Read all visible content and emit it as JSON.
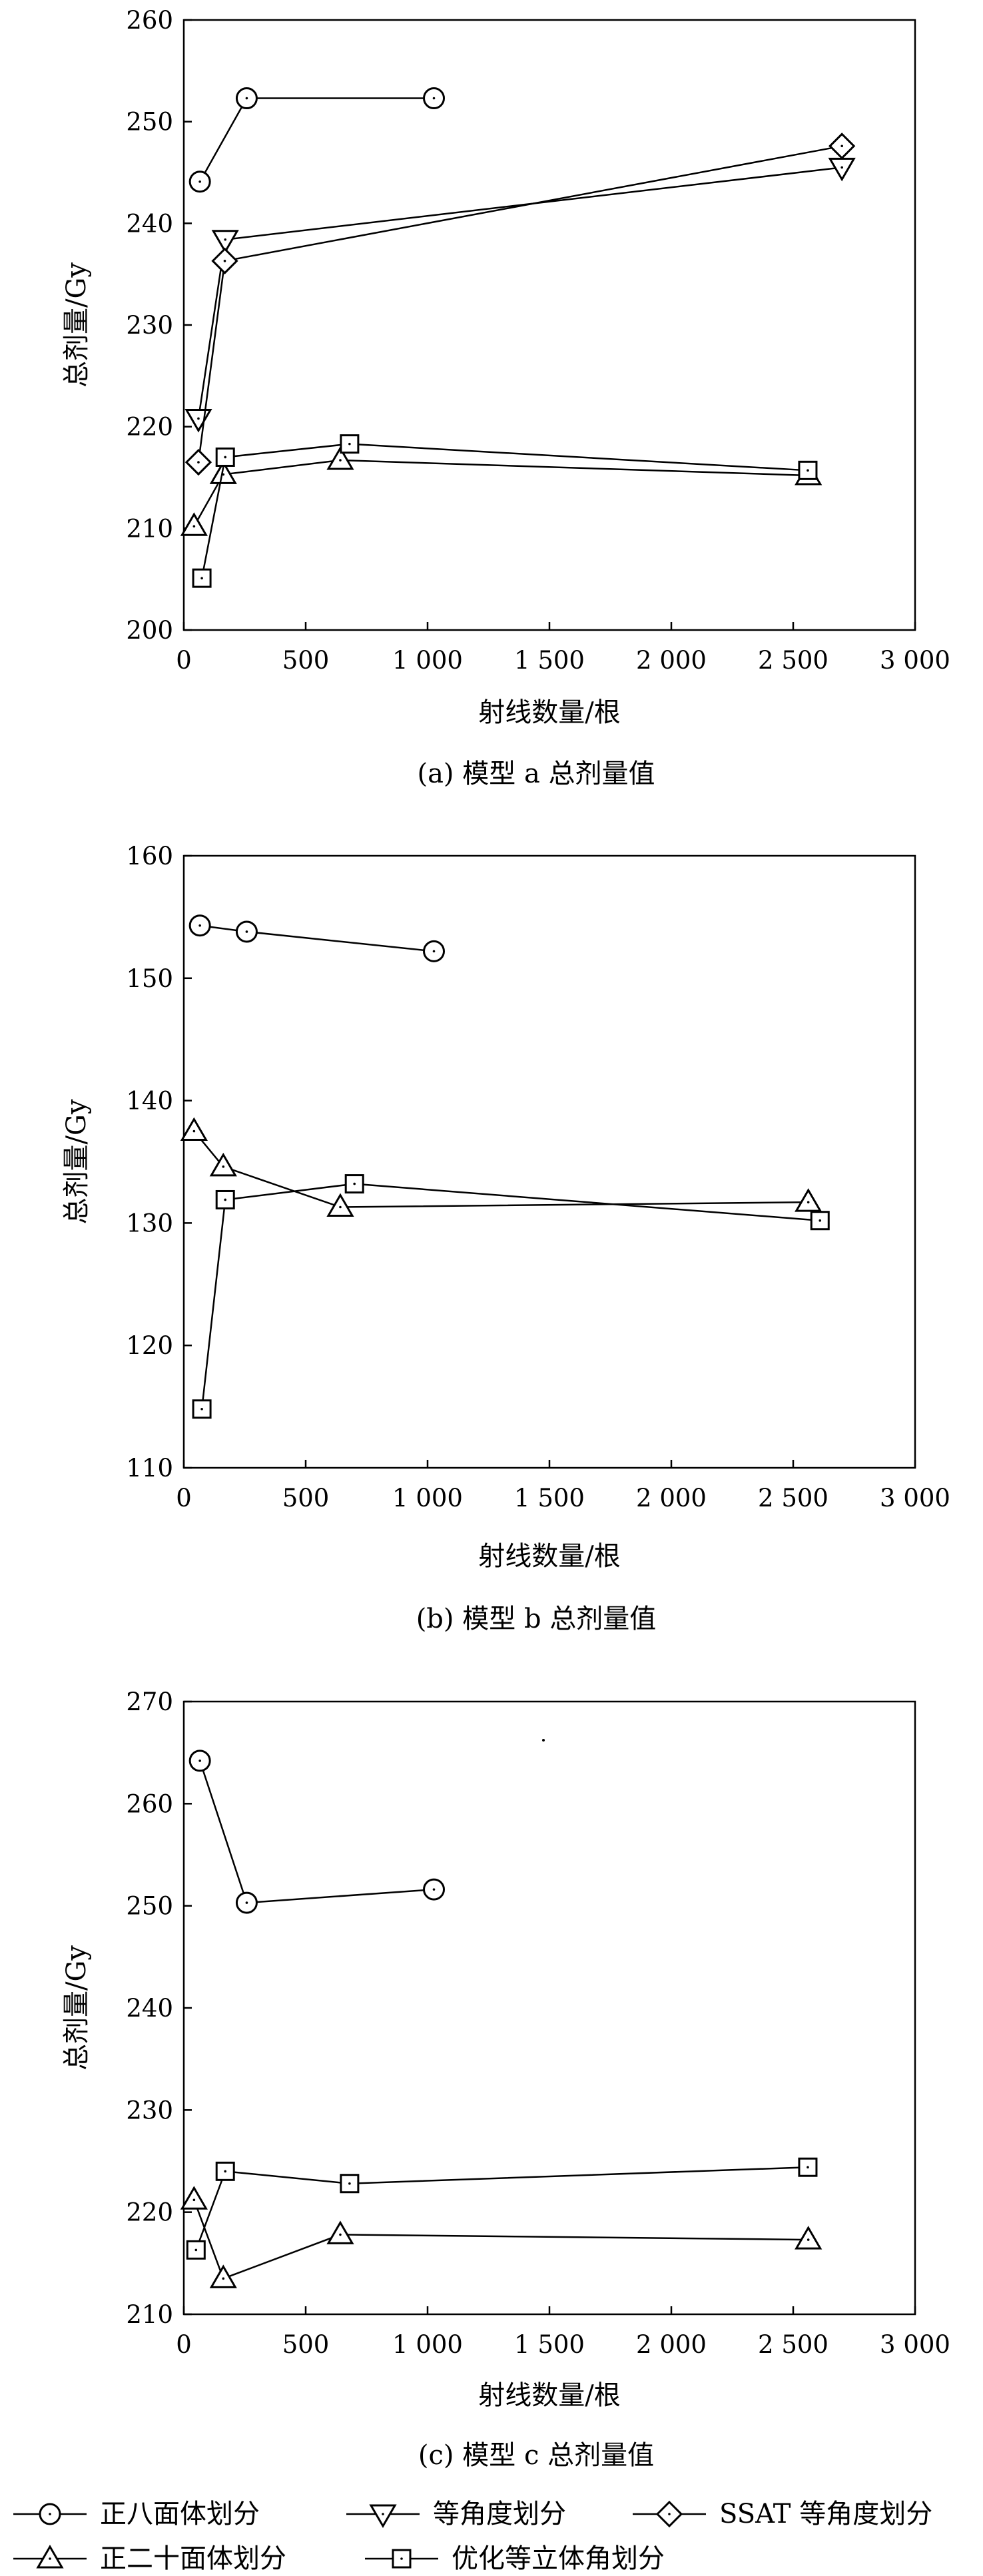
{
  "chart_data": [
    {
      "id": "a",
      "type": "line",
      "caption": "(a) 模型 a 总剂量值",
      "xlabel": "射线数量/根",
      "ylabel": "总剂量/Gy",
      "xlim": [
        0,
        3000
      ],
      "ylim": [
        200,
        260
      ],
      "xticks": [
        0,
        500,
        1000,
        1500,
        2000,
        2500,
        3000
      ],
      "xtick_labels": [
        "0",
        "500",
        "1 000",
        "1 500",
        "2 000",
        "2 500",
        "3 000"
      ],
      "yticks": [
        200,
        210,
        220,
        230,
        240,
        250,
        260
      ],
      "ytick_labels": [
        "200",
        "210",
        "220",
        "230",
        "240",
        "250",
        "260"
      ],
      "grid": false,
      "series": [
        {
          "name": "正八面体划分",
          "marker": "circle",
          "x": [
            66,
            258,
            1026
          ],
          "y": [
            244.1,
            252.3,
            252.3
          ]
        },
        {
          "name": "等角度划分",
          "marker": "triangle-down",
          "x": [
            60,
            170,
            2700
          ],
          "y": [
            220.8,
            238.4,
            245.5
          ]
        },
        {
          "name": "SSAT 等角度划分",
          "marker": "diamond",
          "x": [
            60,
            168,
            2700
          ],
          "y": [
            216.5,
            236.3,
            247.6
          ]
        },
        {
          "name": "正二十面体划分",
          "marker": "triangle-up",
          "x": [
            42,
            162,
            642,
            2562
          ],
          "y": [
            210.2,
            215.3,
            216.7,
            215.2
          ]
        },
        {
          "name": "优化等立体角划分",
          "marker": "square",
          "x": [
            74,
            170,
            680,
            2560
          ],
          "y": [
            205.1,
            217.0,
            218.3,
            215.7
          ]
        }
      ]
    },
    {
      "id": "b",
      "type": "line",
      "caption": "(b) 模型 b 总剂量值",
      "xlabel": "射线数量/根",
      "ylabel": "总剂量/Gy",
      "xlim": [
        0,
        3000
      ],
      "ylim": [
        110,
        160
      ],
      "xticks": [
        0,
        500,
        1000,
        1500,
        2000,
        2500,
        3000
      ],
      "xtick_labels": [
        "0",
        "500",
        "1 000",
        "1 500",
        "2 000",
        "2 500",
        "3 000"
      ],
      "yticks": [
        110,
        120,
        130,
        140,
        150,
        160
      ],
      "ytick_labels": [
        "110",
        "120",
        "130",
        "140",
        "150",
        "160"
      ],
      "grid": false,
      "series": [
        {
          "name": "正八面体划分",
          "marker": "circle",
          "x": [
            66,
            258,
            1026
          ],
          "y": [
            154.3,
            153.8,
            152.2
          ]
        },
        {
          "name": "正二十面体划分",
          "marker": "triangle-up",
          "x": [
            42,
            162,
            642,
            2562
          ],
          "y": [
            137.5,
            134.6,
            131.3,
            131.7
          ]
        },
        {
          "name": "优化等立体角划分",
          "marker": "square",
          "x": [
            74,
            170,
            700,
            2610
          ],
          "y": [
            114.8,
            131.9,
            133.2,
            130.2
          ]
        }
      ]
    },
    {
      "id": "c",
      "type": "line",
      "caption": "(c) 模型 c 总剂量值",
      "xlabel": "射线数量/根",
      "ylabel": "总剂量/Gy",
      "xlim": [
        0,
        3000
      ],
      "ylim": [
        210,
        270
      ],
      "xticks": [
        0,
        500,
        1000,
        1500,
        2000,
        2500,
        3000
      ],
      "xtick_labels": [
        "0",
        "500",
        "1 000",
        "1 500",
        "2 000",
        "2 500",
        "3 000"
      ],
      "yticks": [
        210,
        220,
        230,
        240,
        250,
        260,
        270
      ],
      "ytick_labels": [
        "210",
        "220",
        "230",
        "240",
        "250",
        "260",
        "270"
      ],
      "grid": false,
      "series": [
        {
          "name": "正八面体划分",
          "marker": "circle",
          "x": [
            66,
            258,
            1026
          ],
          "y": [
            264.2,
            250.3,
            251.6
          ]
        },
        {
          "name": "正二十面体划分",
          "marker": "triangle-up",
          "x": [
            42,
            162,
            642,
            2562
          ],
          "y": [
            221.2,
            213.5,
            217.8,
            217.3
          ]
        },
        {
          "name": "优化等立体角划分",
          "marker": "square",
          "x": [
            50,
            170,
            680,
            2560
          ],
          "y": [
            216.3,
            224.0,
            222.8,
            224.4
          ]
        }
      ]
    }
  ],
  "legend": [
    {
      "label": "正八面体划分",
      "marker": "circle"
    },
    {
      "label": "等角度划分",
      "marker": "triangle-down"
    },
    {
      "label": "SSAT 等角度划分",
      "marker": "diamond"
    },
    {
      "label": "正二十面体划分",
      "marker": "triangle-up"
    },
    {
      "label": "优化等立体角划分",
      "marker": "square"
    }
  ]
}
